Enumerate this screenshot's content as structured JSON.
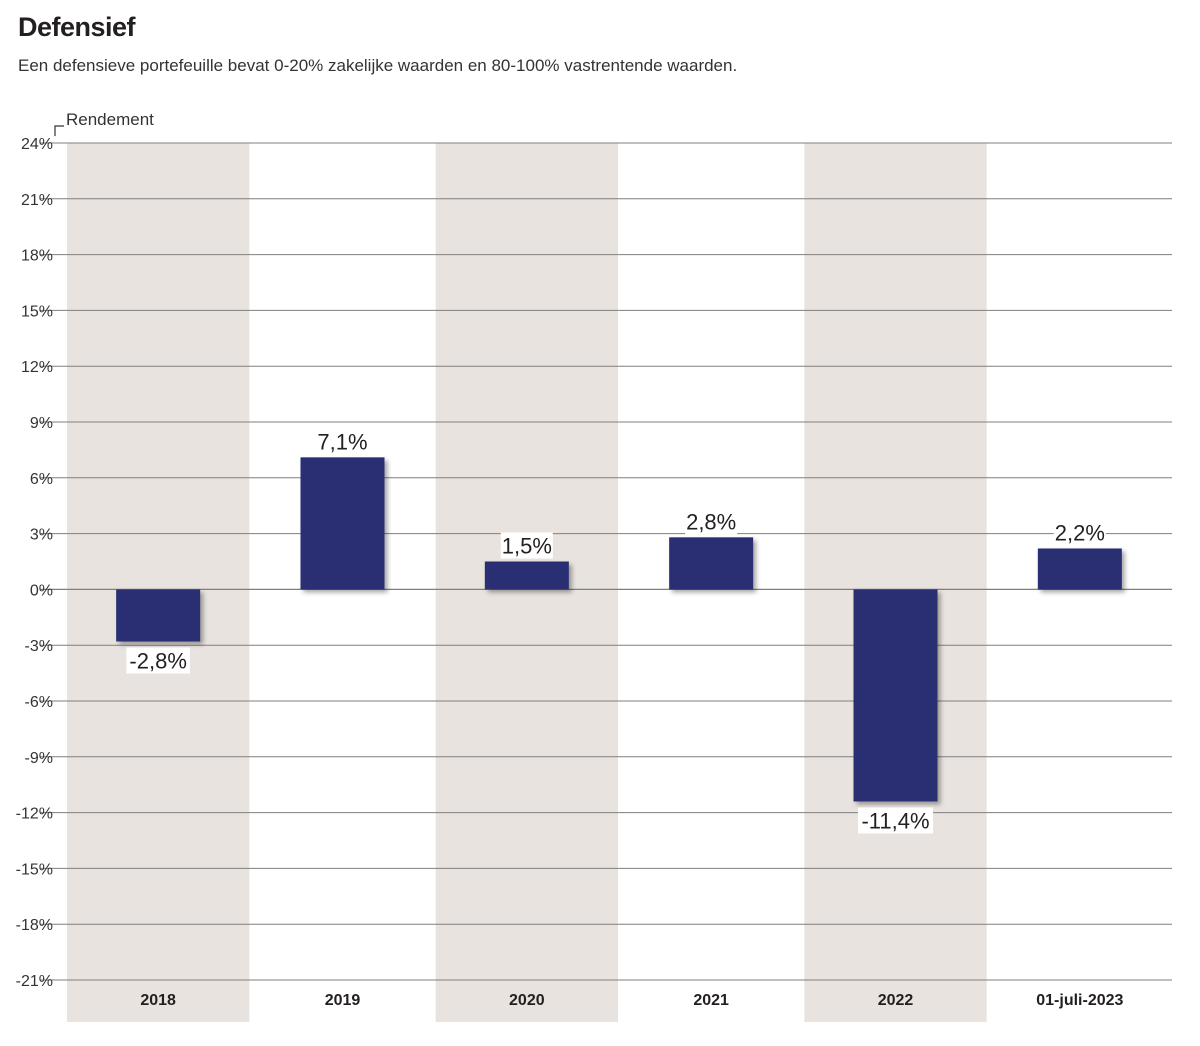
{
  "header": {
    "title": "Defensief",
    "subtitle": "Een defensieve portefeuille bevat 0-20% zakelijke waarden en 80-100% vastrentende waarden."
  },
  "colors": {
    "bar": "#292d72",
    "band": "#e8e3de",
    "grid": "#7f7f7f"
  },
  "chart_data": {
    "type": "bar",
    "title": "Defensief",
    "xlabel": "",
    "ylabel": "Rendement",
    "categories": [
      "2018",
      "2019",
      "2020",
      "2021",
      "2022",
      "01-juli-2023"
    ],
    "values": [
      -2.8,
      7.1,
      1.5,
      2.8,
      -11.4,
      2.2
    ],
    "value_labels": [
      "-2,8%",
      "7,1%",
      "1,5%",
      "2,8%",
      "-11,4%",
      "2,2%"
    ],
    "yticks": [
      24,
      21,
      18,
      15,
      12,
      9,
      6,
      3,
      0,
      -3,
      -6,
      -9,
      -12,
      -15,
      -18,
      -21
    ],
    "ytick_labels": [
      "24%",
      "21%",
      "18%",
      "15%",
      "12%",
      "9%",
      "6%",
      "3%",
      "0%",
      "-3%",
      "-6%",
      "-9%",
      "-12%",
      "-15%",
      "-18%",
      "-21%"
    ],
    "ylim": [
      -21,
      24
    ],
    "grid": true,
    "shaded_columns": [
      0,
      2,
      4
    ]
  }
}
